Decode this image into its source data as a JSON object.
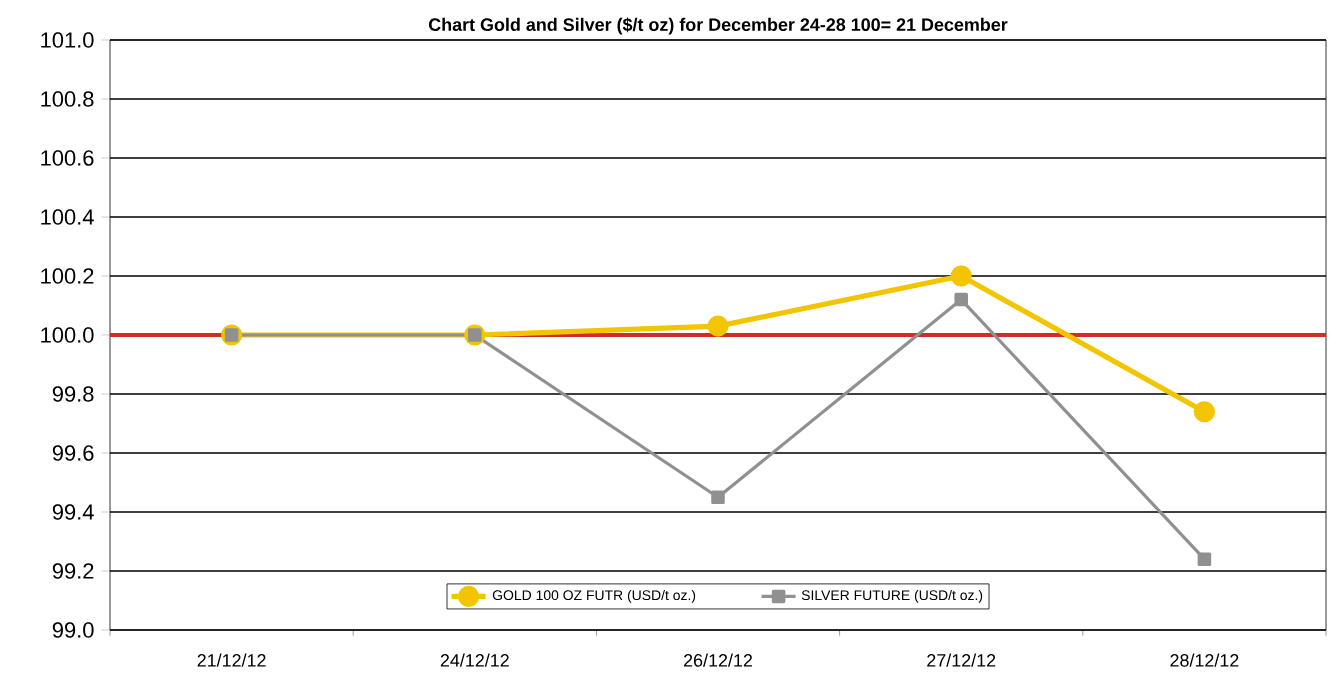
{
  "chart_data": {
    "type": "line",
    "title": "Chart Gold and Silver ($/t oz) for December 24-28 100= 21 December",
    "categories": [
      "21/12/12",
      "24/12/12",
      "26/12/12",
      "27/12/12",
      "28/12/12"
    ],
    "series": [
      {
        "name": "GOLD 100 OZ FUTR (USD/t oz.)",
        "color": "#f2c500",
        "marker": "circle",
        "values": [
          100.0,
          100.0,
          100.03,
          100.2,
          99.74
        ]
      },
      {
        "name": "SILVER FUTURE (USD/t oz.)",
        "color": "#909090",
        "marker": "square",
        "values": [
          100.0,
          100.0,
          99.45,
          100.12,
          99.24
        ]
      }
    ],
    "ylim": [
      99.0,
      101.0
    ],
    "yticks": [
      {
        "value": 99.0,
        "label": "99.0"
      },
      {
        "value": 99.2,
        "label": "99.2"
      },
      {
        "value": 99.4,
        "label": "99.4"
      },
      {
        "value": 99.6,
        "label": "99.6"
      },
      {
        "value": 99.8,
        "label": "99.8"
      },
      {
        "value": 100.0,
        "label": "100.0"
      },
      {
        "value": 100.2,
        "label": "100.2"
      },
      {
        "value": 100.4,
        "label": "100.4"
      },
      {
        "value": 100.6,
        "label": "100.6"
      },
      {
        "value": 100.8,
        "label": "100.8"
      },
      {
        "value": 101.0,
        "label": "101.0"
      }
    ],
    "ref_lines": [
      {
        "axis": "y",
        "value": 100.0,
        "color": "#d42a2a"
      }
    ],
    "grid": "y",
    "legend": "bottom",
    "line_style": "solid"
  }
}
